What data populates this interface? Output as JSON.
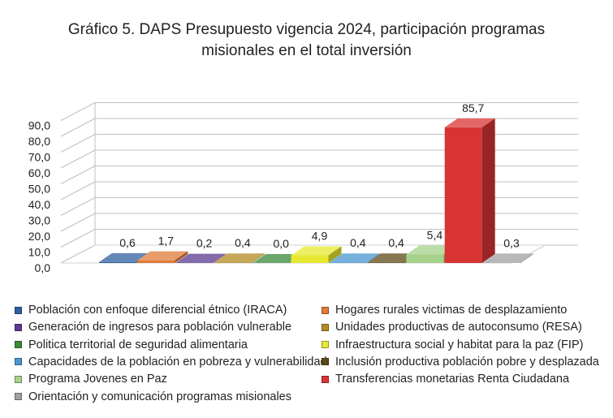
{
  "chart_data": {
    "type": "bar",
    "title": "Gráfico 5. DAPS Presupuesto vigencia 2024,  participación programas misionales en el total inversión",
    "title_line1": "Gráfico 5. DAPS Presupuesto vigencia 2024,  participación programas",
    "title_line2": "misionales en el total inversión",
    "xlabel": "",
    "ylabel": "",
    "ylim": [
      0,
      90
    ],
    "yticks": [
      "0,0",
      "10,0",
      "20,0",
      "30,0",
      "40,0",
      "50,0",
      "60,0",
      "70,0",
      "80,0",
      "90,0"
    ],
    "grid": true,
    "three_d": true,
    "legend_position": "bottom",
    "categories": [
      "Población con enfoque diferencial étnico (IRACA)",
      "Hogares rurales victimas de desplazamiento",
      "Generación de ingresos para población vulnerable",
      "Unidades productivas de autoconsumo (RESA)",
      "Politica territorial de seguridad alimentaria",
      "Infraestructura social y habitat para la paz (FIP)",
      "Capacidades de la población en pobreza y vulnerabilidad",
      "Inclusión productiva población pobre y desplazada",
      "Programa Jovenes en Paz",
      "Transferencias monetarias Renta Ciudadana",
      "Orientación y comunicación programas misionales"
    ],
    "values": [
      0.6,
      1.7,
      0.2,
      0.4,
      0.0,
      4.9,
      0.4,
      0.4,
      5.4,
      85.7,
      0.3
    ],
    "value_labels": [
      "0,6",
      "1,7",
      "0,2",
      "0,4",
      "0,0",
      "4,9",
      "0,4",
      "0,4",
      "5,4",
      "85,7",
      "0,3"
    ],
    "colors": [
      "#2f5f9e",
      "#e07b39",
      "#5b3a8e",
      "#b38b24",
      "#3a8a3a",
      "#e8e832",
      "#4a97cf",
      "#5c4a17",
      "#a6d18a",
      "#d93434",
      "#a0a0a0"
    ]
  }
}
